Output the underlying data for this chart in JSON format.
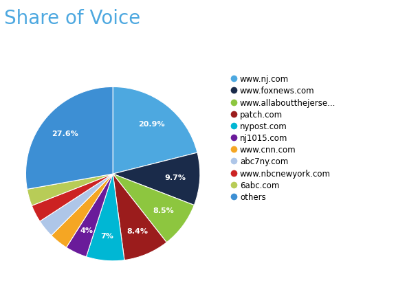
{
  "title": "Share of Voice",
  "labels": [
    "www.nj.com",
    "www.foxnews.com",
    "www.allaboutthejerse...",
    "patch.com",
    "nypost.com",
    "nj1015.com",
    "www.cnn.com",
    "abc7ny.com",
    "www.nbcnewyork.com",
    "6abc.com",
    "others"
  ],
  "values": [
    20.9,
    9.7,
    8.5,
    8.4,
    7.0,
    4.0,
    3.5,
    3.3,
    3.2,
    3.1,
    27.6
  ],
  "colors": [
    "#4da8e0",
    "#1a2b4a",
    "#8dc63f",
    "#9b1c1c",
    "#00b7d4",
    "#6a1b9a",
    "#f5a623",
    "#aec6e8",
    "#cc2222",
    "#b8cc57",
    "#3d8fd4"
  ],
  "autopct_labels": [
    "20.9%",
    "9.7%",
    "8.5%",
    "8.4%",
    "7%",
    "4%",
    "",
    "",
    "",
    "",
    "27.6%"
  ],
  "title_fontsize": 20,
  "title_color": "#4da8e0",
  "legend_fontsize": 8.5,
  "background_color": "#ffffff"
}
